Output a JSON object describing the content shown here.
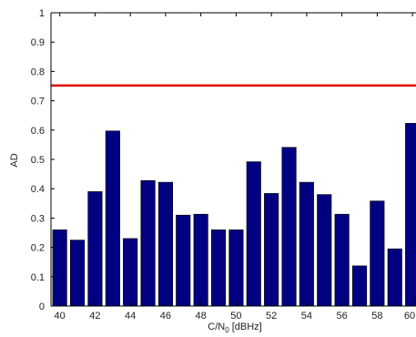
{
  "chart_data": {
    "type": "bar",
    "xlabel_main": "C/N",
    "xlabel_sub": "0",
    "xlabel_unit": " [dBHz]",
    "ylabel": "AD",
    "x": [
      40,
      41,
      42,
      43,
      44,
      45,
      46,
      47,
      48,
      49,
      50,
      51,
      52,
      53,
      54,
      55,
      56,
      57,
      58,
      59,
      60
    ],
    "values": [
      0.26,
      0.225,
      0.39,
      0.597,
      0.23,
      0.428,
      0.422,
      0.31,
      0.313,
      0.26,
      0.26,
      0.492,
      0.384,
      0.541,
      0.422,
      0.38,
      0.313,
      0.137,
      0.358,
      0.195,
      0.623
    ],
    "x_ticks": [
      "40",
      "42",
      "44",
      "46",
      "48",
      "50",
      "52",
      "54",
      "56",
      "58",
      "60"
    ],
    "y_ticks": [
      "0",
      "0.1",
      "0.2",
      "0.3",
      "0.4",
      "0.5",
      "0.6",
      "0.7",
      "0.8",
      "0.9",
      "1"
    ],
    "ylim": [
      0,
      1
    ],
    "xlim": [
      39.5,
      60.2
    ],
    "threshold": 0.752,
    "grid": false,
    "colors": {
      "bar": "#000080",
      "bar_edge": "#000000",
      "threshold": "#e00000",
      "axis": "#000000"
    }
  }
}
